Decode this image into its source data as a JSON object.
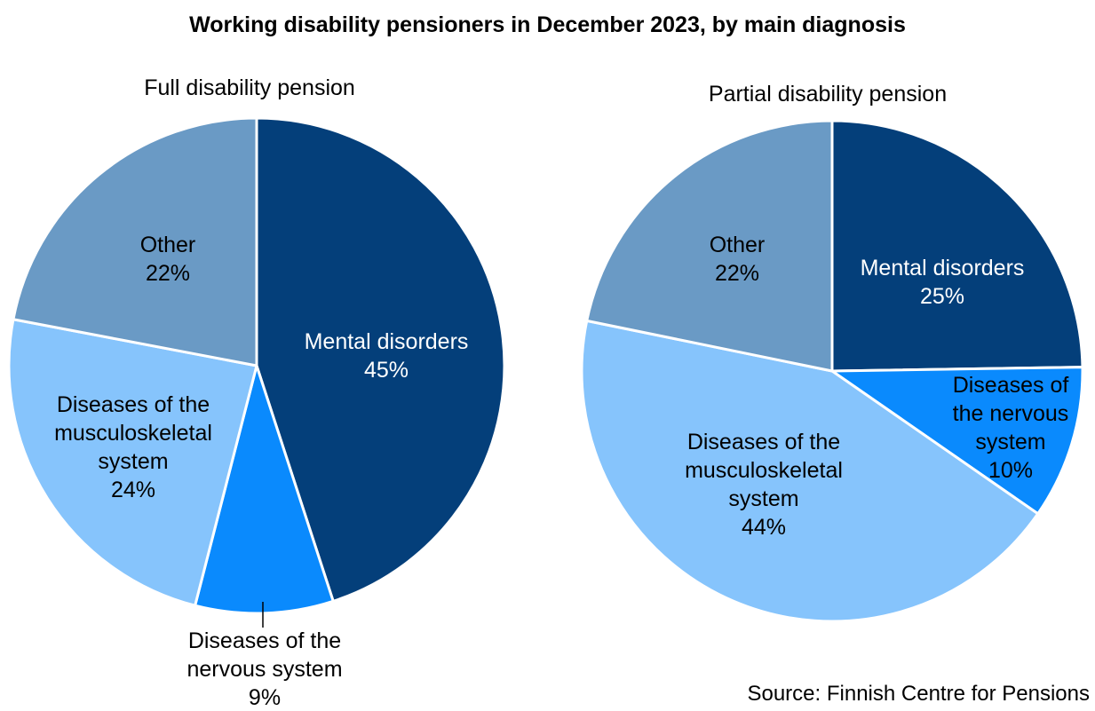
{
  "title": "Working disability pensioners in December 2023, by main diagnosis",
  "source": "Source: Finnish Centre for Pensions",
  "chart_data": [
    {
      "type": "pie",
      "title": "Full disability pension",
      "slices": [
        {
          "label_lines": [
            "Mental disorders"
          ],
          "value": 45,
          "value_label": "45%",
          "color": "#043F7A",
          "text_color": "#FFFFFF"
        },
        {
          "label_lines": [
            "Diseases of the",
            "nervous system"
          ],
          "value": 9,
          "value_label": "9%",
          "color": "#0A8AFD",
          "text_color": "#000000"
        },
        {
          "label_lines": [
            "Diseases of the",
            "musculoskeletal",
            "system"
          ],
          "value": 24,
          "value_label": "24%",
          "color": "#86C4FC",
          "text_color": "#000000"
        },
        {
          "label_lines": [
            "Other"
          ],
          "value": 22,
          "value_label": "22%",
          "color": "#6A9AC5",
          "text_color": "#000000"
        }
      ]
    },
    {
      "type": "pie",
      "title": "Partial disability pension",
      "slices": [
        {
          "label_lines": [
            "Mental disorders"
          ],
          "value": 25,
          "value_label": "25%",
          "color": "#043F7A",
          "text_color": "#FFFFFF"
        },
        {
          "label_lines": [
            "Diseases of",
            "the nervous",
            "system"
          ],
          "value": 10,
          "value_label": "10%",
          "color": "#0A8AFD",
          "text_color": "#000000"
        },
        {
          "label_lines": [
            "Diseases of the",
            "musculoskeletal",
            "system"
          ],
          "value": 44,
          "value_label": "44%",
          "color": "#86C4FC",
          "text_color": "#000000"
        },
        {
          "label_lines": [
            "Other"
          ],
          "value": 22,
          "value_label": "22%",
          "color": "#6A9AC5",
          "text_color": "#000000"
        }
      ]
    }
  ]
}
